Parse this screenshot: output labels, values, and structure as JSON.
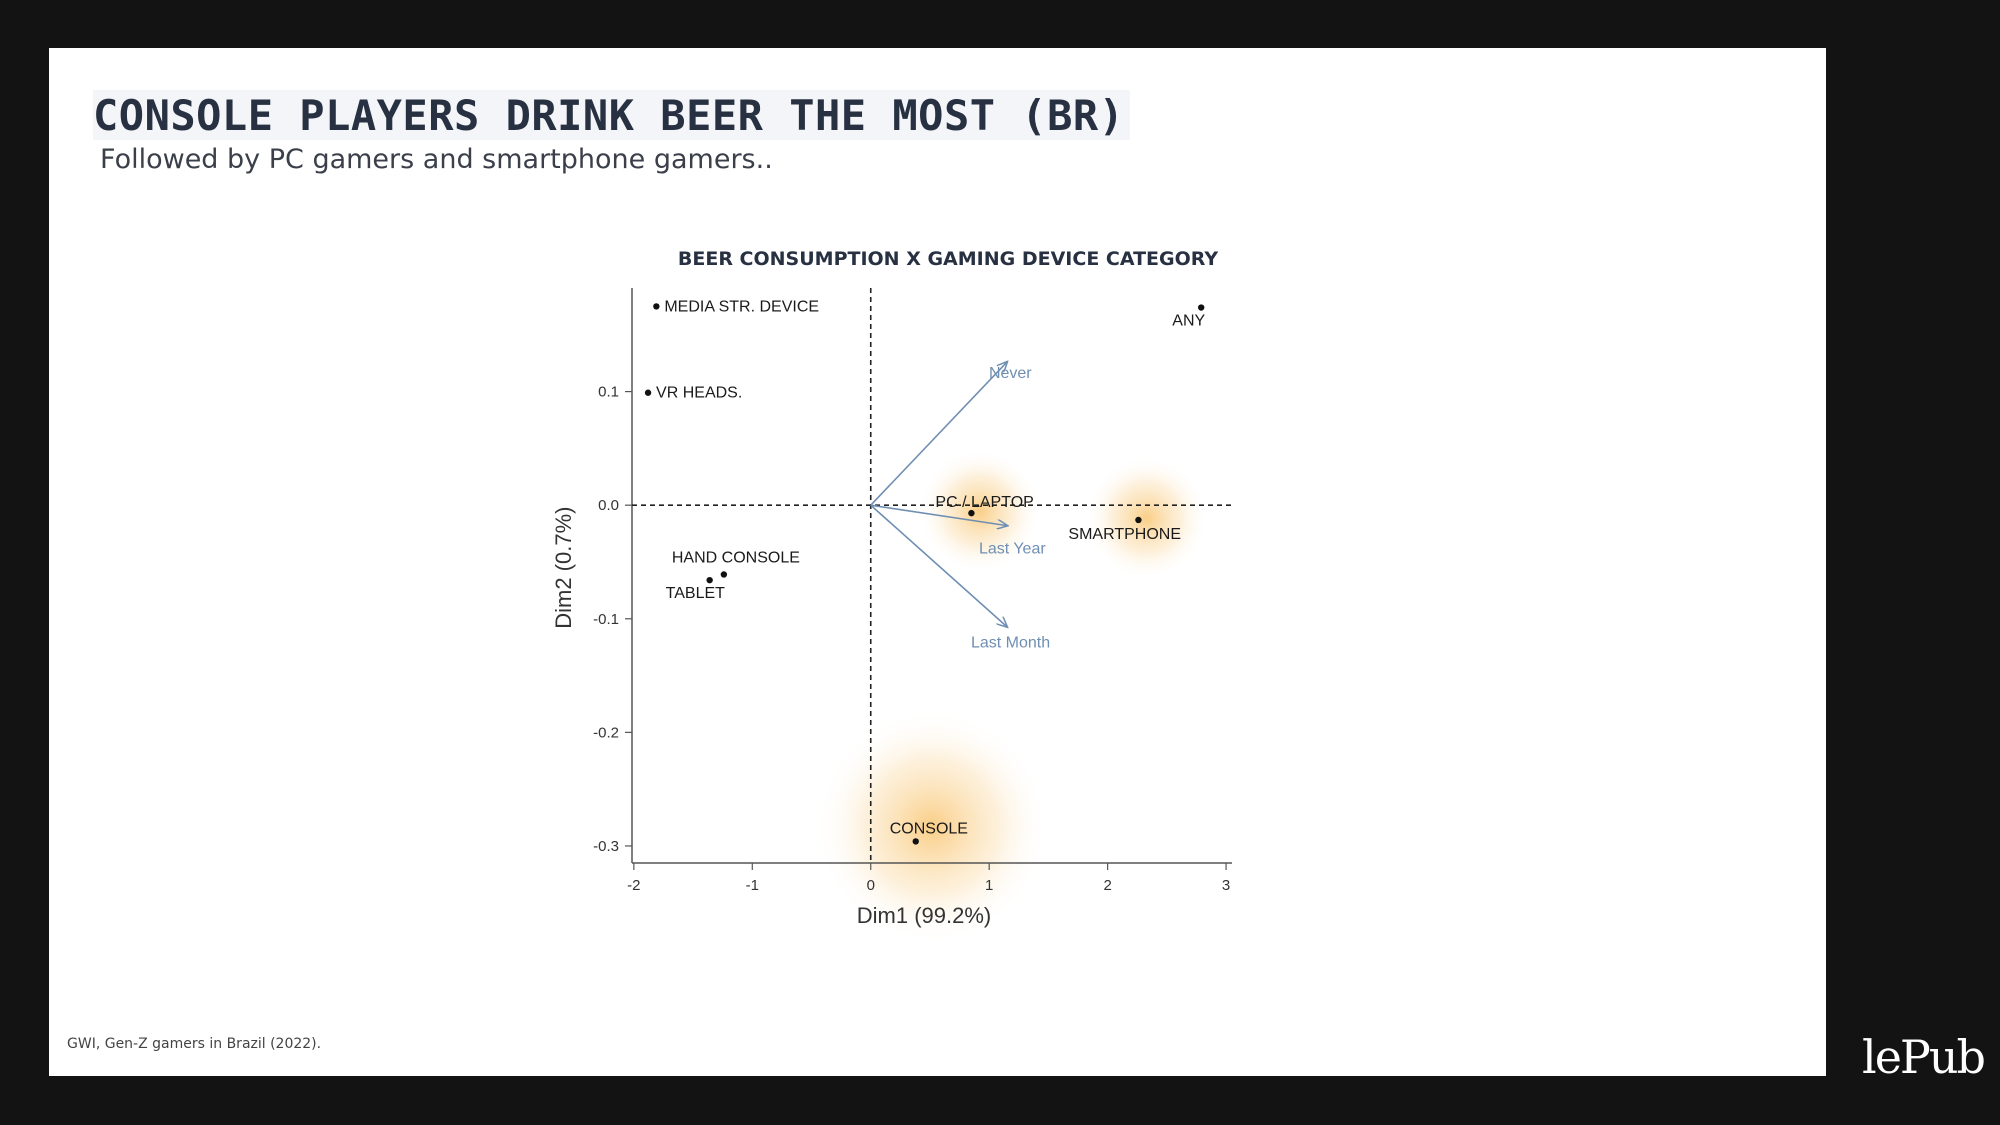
{
  "slide": {
    "title": "CONSOLE PLAYERS DRINK BEER THE MOST (BR)",
    "subtitle": "Followed by PC gamers and smartphone gamers..",
    "source": "GWI, Gen-Z gamers in Brazil (2022).",
    "logo": "lePub"
  },
  "colors": {
    "background": "#131313",
    "title": "#273142",
    "arrow": "#6f8fb2",
    "highlight": "#f6a623"
  },
  "chart_data": {
    "type": "scatter",
    "title": "BEER CONSUMPTION X GAMING DEVICE CATEGORY",
    "xlabel": "Dim1 (99.2%)",
    "ylabel": "Dim2 (0.7%)",
    "xlim": [
      -2.1,
      3.05
    ],
    "ylim": [
      -0.315,
      0.2
    ],
    "xticks": [
      -2,
      -1,
      0,
      1,
      2,
      3
    ],
    "yticks": [
      0.1,
      0.0,
      -0.1,
      -0.2,
      -0.3
    ],
    "grid": false,
    "reference_lines": {
      "x": 0,
      "y": 0
    },
    "points": [
      {
        "label": "MEDIA STR. DEVICE",
        "x": -1.81,
        "y": 0.175
      },
      {
        "label": "VR HEADS.",
        "x": -1.88,
        "y": 0.099
      },
      {
        "label": "ANY",
        "x": 2.79,
        "y": 0.174
      },
      {
        "label": "PC / LAPTOP",
        "x": 0.85,
        "y": -0.007,
        "highlighted": true
      },
      {
        "label": "SMARTPHONE",
        "x": 2.26,
        "y": -0.013,
        "highlighted": true
      },
      {
        "label": "HAND CONSOLE",
        "x": -1.24,
        "y": -0.061
      },
      {
        "label": "TABLET",
        "x": -1.36,
        "y": -0.066
      },
      {
        "label": "CONSOLE",
        "x": 0.38,
        "y": -0.296,
        "highlighted": true
      }
    ],
    "arrows": [
      {
        "label": "Never",
        "x": 1.15,
        "y": 0.126
      },
      {
        "label": "Last Year",
        "x": 1.15,
        "y": -0.018
      },
      {
        "label": "Last Month",
        "x": 1.15,
        "y": -0.107
      }
    ]
  }
}
